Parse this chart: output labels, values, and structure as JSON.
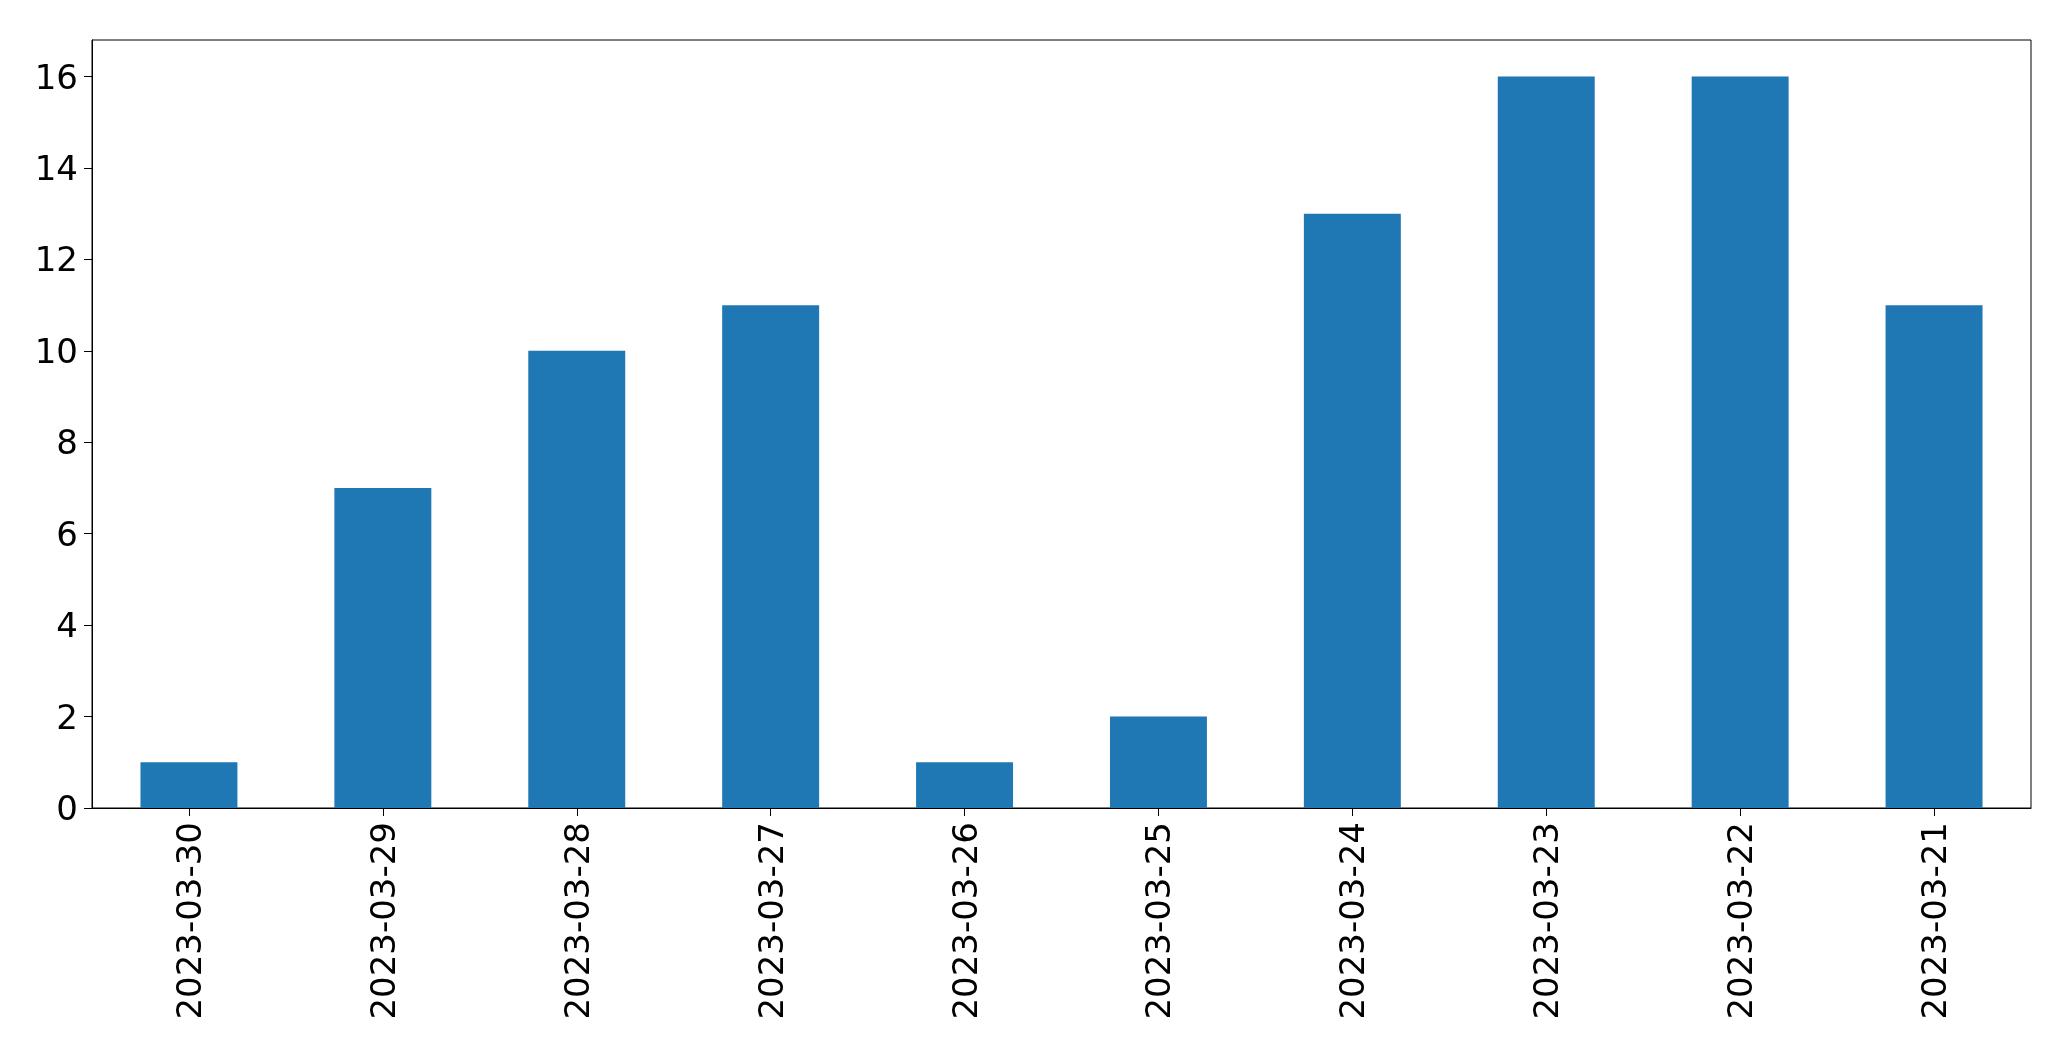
{
  "chart_data": {
    "type": "bar",
    "categories": [
      "2023-03-30",
      "2023-03-29",
      "2023-03-28",
      "2023-03-27",
      "2023-03-26",
      "2023-03-25",
      "2023-03-24",
      "2023-03-23",
      "2023-03-22",
      "2023-03-21"
    ],
    "values": [
      1,
      7,
      10,
      11,
      1,
      2,
      13,
      16,
      16,
      11
    ],
    "color": "#1f77b4",
    "ylim": [
      0,
      16.8
    ],
    "yticks": [
      0,
      2,
      4,
      6,
      8,
      10,
      12,
      14,
      16
    ]
  }
}
